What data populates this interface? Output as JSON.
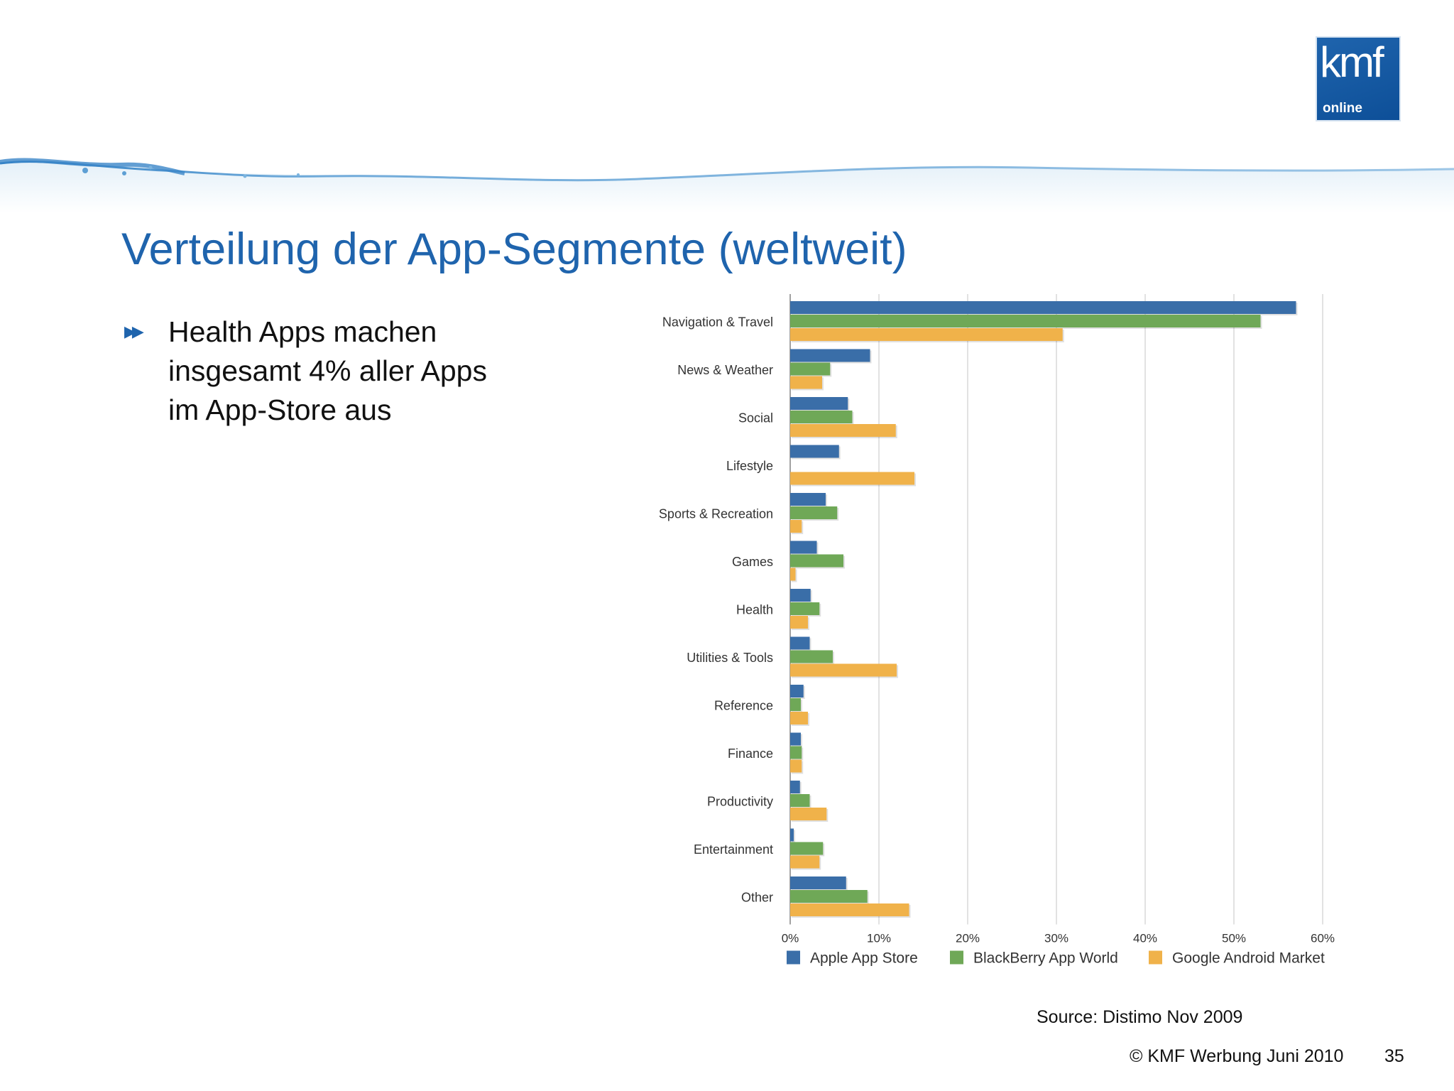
{
  "logo": {
    "main": "kmf",
    "sub": "online"
  },
  "slide": {
    "title": "Verteilung der App-Segmente (weltweit)"
  },
  "bullets": [
    {
      "text": "Health Apps machen insgesamt 4% aller Apps im App-Store aus"
    }
  ],
  "chart_data": {
    "type": "bar",
    "orientation": "horizontal",
    "title": "",
    "xlabel": "",
    "ylabel": "",
    "categories": [
      "Navigation & Travel",
      "News & Weather",
      "Social",
      "Lifestyle",
      "Sports & Recreation",
      "Games",
      "Health",
      "Utilities & Tools",
      "Reference",
      "Finance",
      "Productivity",
      "Entertainment",
      "Other"
    ],
    "series": [
      {
        "name": "Apple App Store",
        "color": "#3a6ea8",
        "values": [
          57,
          9,
          6.5,
          5.5,
          4,
          3,
          2.3,
          2.2,
          1.5,
          1.2,
          1.1,
          0.4,
          6.3
        ]
      },
      {
        "name": "BlackBerry App World",
        "color": "#6fa857",
        "values": [
          53,
          4.5,
          7,
          0,
          5.3,
          6,
          3.3,
          4.8,
          1.2,
          1.3,
          2.2,
          3.7,
          8.7
        ]
      },
      {
        "name": "Google Android Market",
        "color": "#f0b24a",
        "values": [
          30.7,
          3.6,
          11.9,
          14,
          1.3,
          0.6,
          2,
          12,
          2,
          1.3,
          4.1,
          3.3,
          13.4
        ]
      }
    ],
    "xlim": [
      0,
      60
    ],
    "xticks": [
      "0%",
      "10%",
      "20%",
      "30%",
      "40%",
      "50%",
      "60%"
    ],
    "grid": true,
    "legend": "bottom"
  },
  "footer": {
    "source": "Source: Distimo Nov 2009",
    "copyright": "© KMF Werbung Juni 2010",
    "page": "35"
  }
}
